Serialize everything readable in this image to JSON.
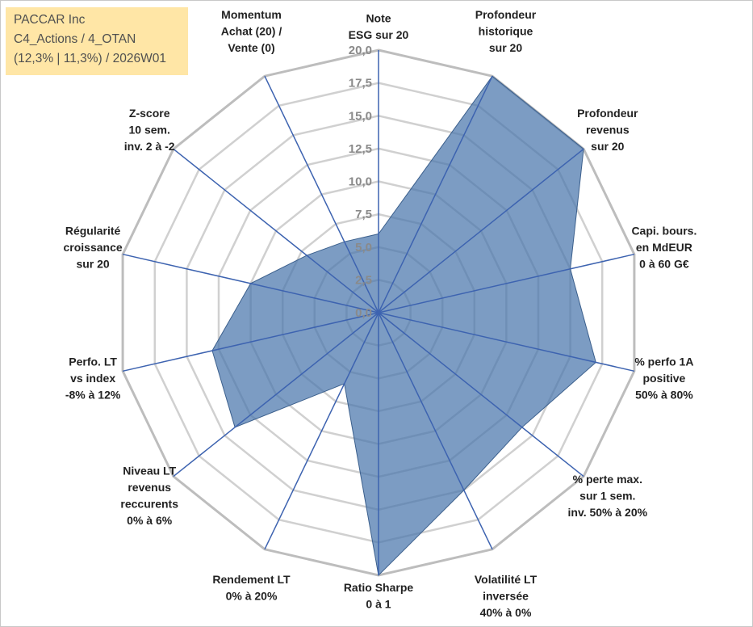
{
  "title_box": {
    "line1": "PACCAR Inc",
    "line2": "C4_Actions / 4_OTAN",
    "line3": "(12,3% | 11,3%) / 2026W01",
    "background": "#ffe6a6"
  },
  "colors": {
    "fill": "#4a76ac",
    "outline": "#3b5f8c",
    "spoke": "#3d63b0",
    "ring": "#d0d0d0",
    "outer_ring": "#bdbdbd"
  },
  "chart_data": {
    "type": "radar",
    "title": "",
    "rmin": 0,
    "rmax": 20,
    "ticks": [
      "0,0",
      "2,5",
      "5,0",
      "7,5",
      "10,0",
      "12,5",
      "15,0",
      "17,5",
      "20,0"
    ],
    "axes": [
      {
        "lines": [
          "Note",
          "ESG sur 20"
        ],
        "value": 6
      },
      {
        "lines": [
          "Profondeur",
          "historique",
          "sur 20"
        ],
        "value": 20
      },
      {
        "lines": [
          "Profondeur",
          "revenus",
          "sur 20"
        ],
        "value": 20
      },
      {
        "lines": [
          "Capi. bours.",
          "en MdEUR",
          "0 à 60 G€"
        ],
        "value": 15
      },
      {
        "lines": [
          "% perfo 1A",
          "positive",
          "50% à 80%"
        ],
        "value": 17
      },
      {
        "lines": [
          "% perte max.",
          "sur 1 sem.",
          "inv. 50% à 20%"
        ],
        "value": 14
      },
      {
        "lines": [
          "Volatilité LT",
          "inversée",
          "40% à 0%"
        ],
        "value": 15
      },
      {
        "lines": [
          "Ratio Sharpe",
          "0 à 1"
        ],
        "value": 20
      },
      {
        "lines": [
          "Rendement LT",
          "0% à 20%"
        ],
        "value": 6
      },
      {
        "lines": [
          "Niveau LT",
          "revenus",
          "reccurents",
          "0% à 6%"
        ],
        "value": 14
      },
      {
        "lines": [
          "Perfo. LT",
          "vs index",
          "-8% à 12%"
        ],
        "value": 13
      },
      {
        "lines": [
          "Régularité",
          "croissance",
          "sur 20"
        ],
        "value": 10
      },
      {
        "lines": [
          "Z-score",
          "10 sem.",
          "inv. 2 à -2"
        ],
        "value": 7
      },
      {
        "lines": [
          "Momentum",
          "Achat (20) /",
          "Vente (0)"
        ],
        "value": 6
      }
    ]
  }
}
